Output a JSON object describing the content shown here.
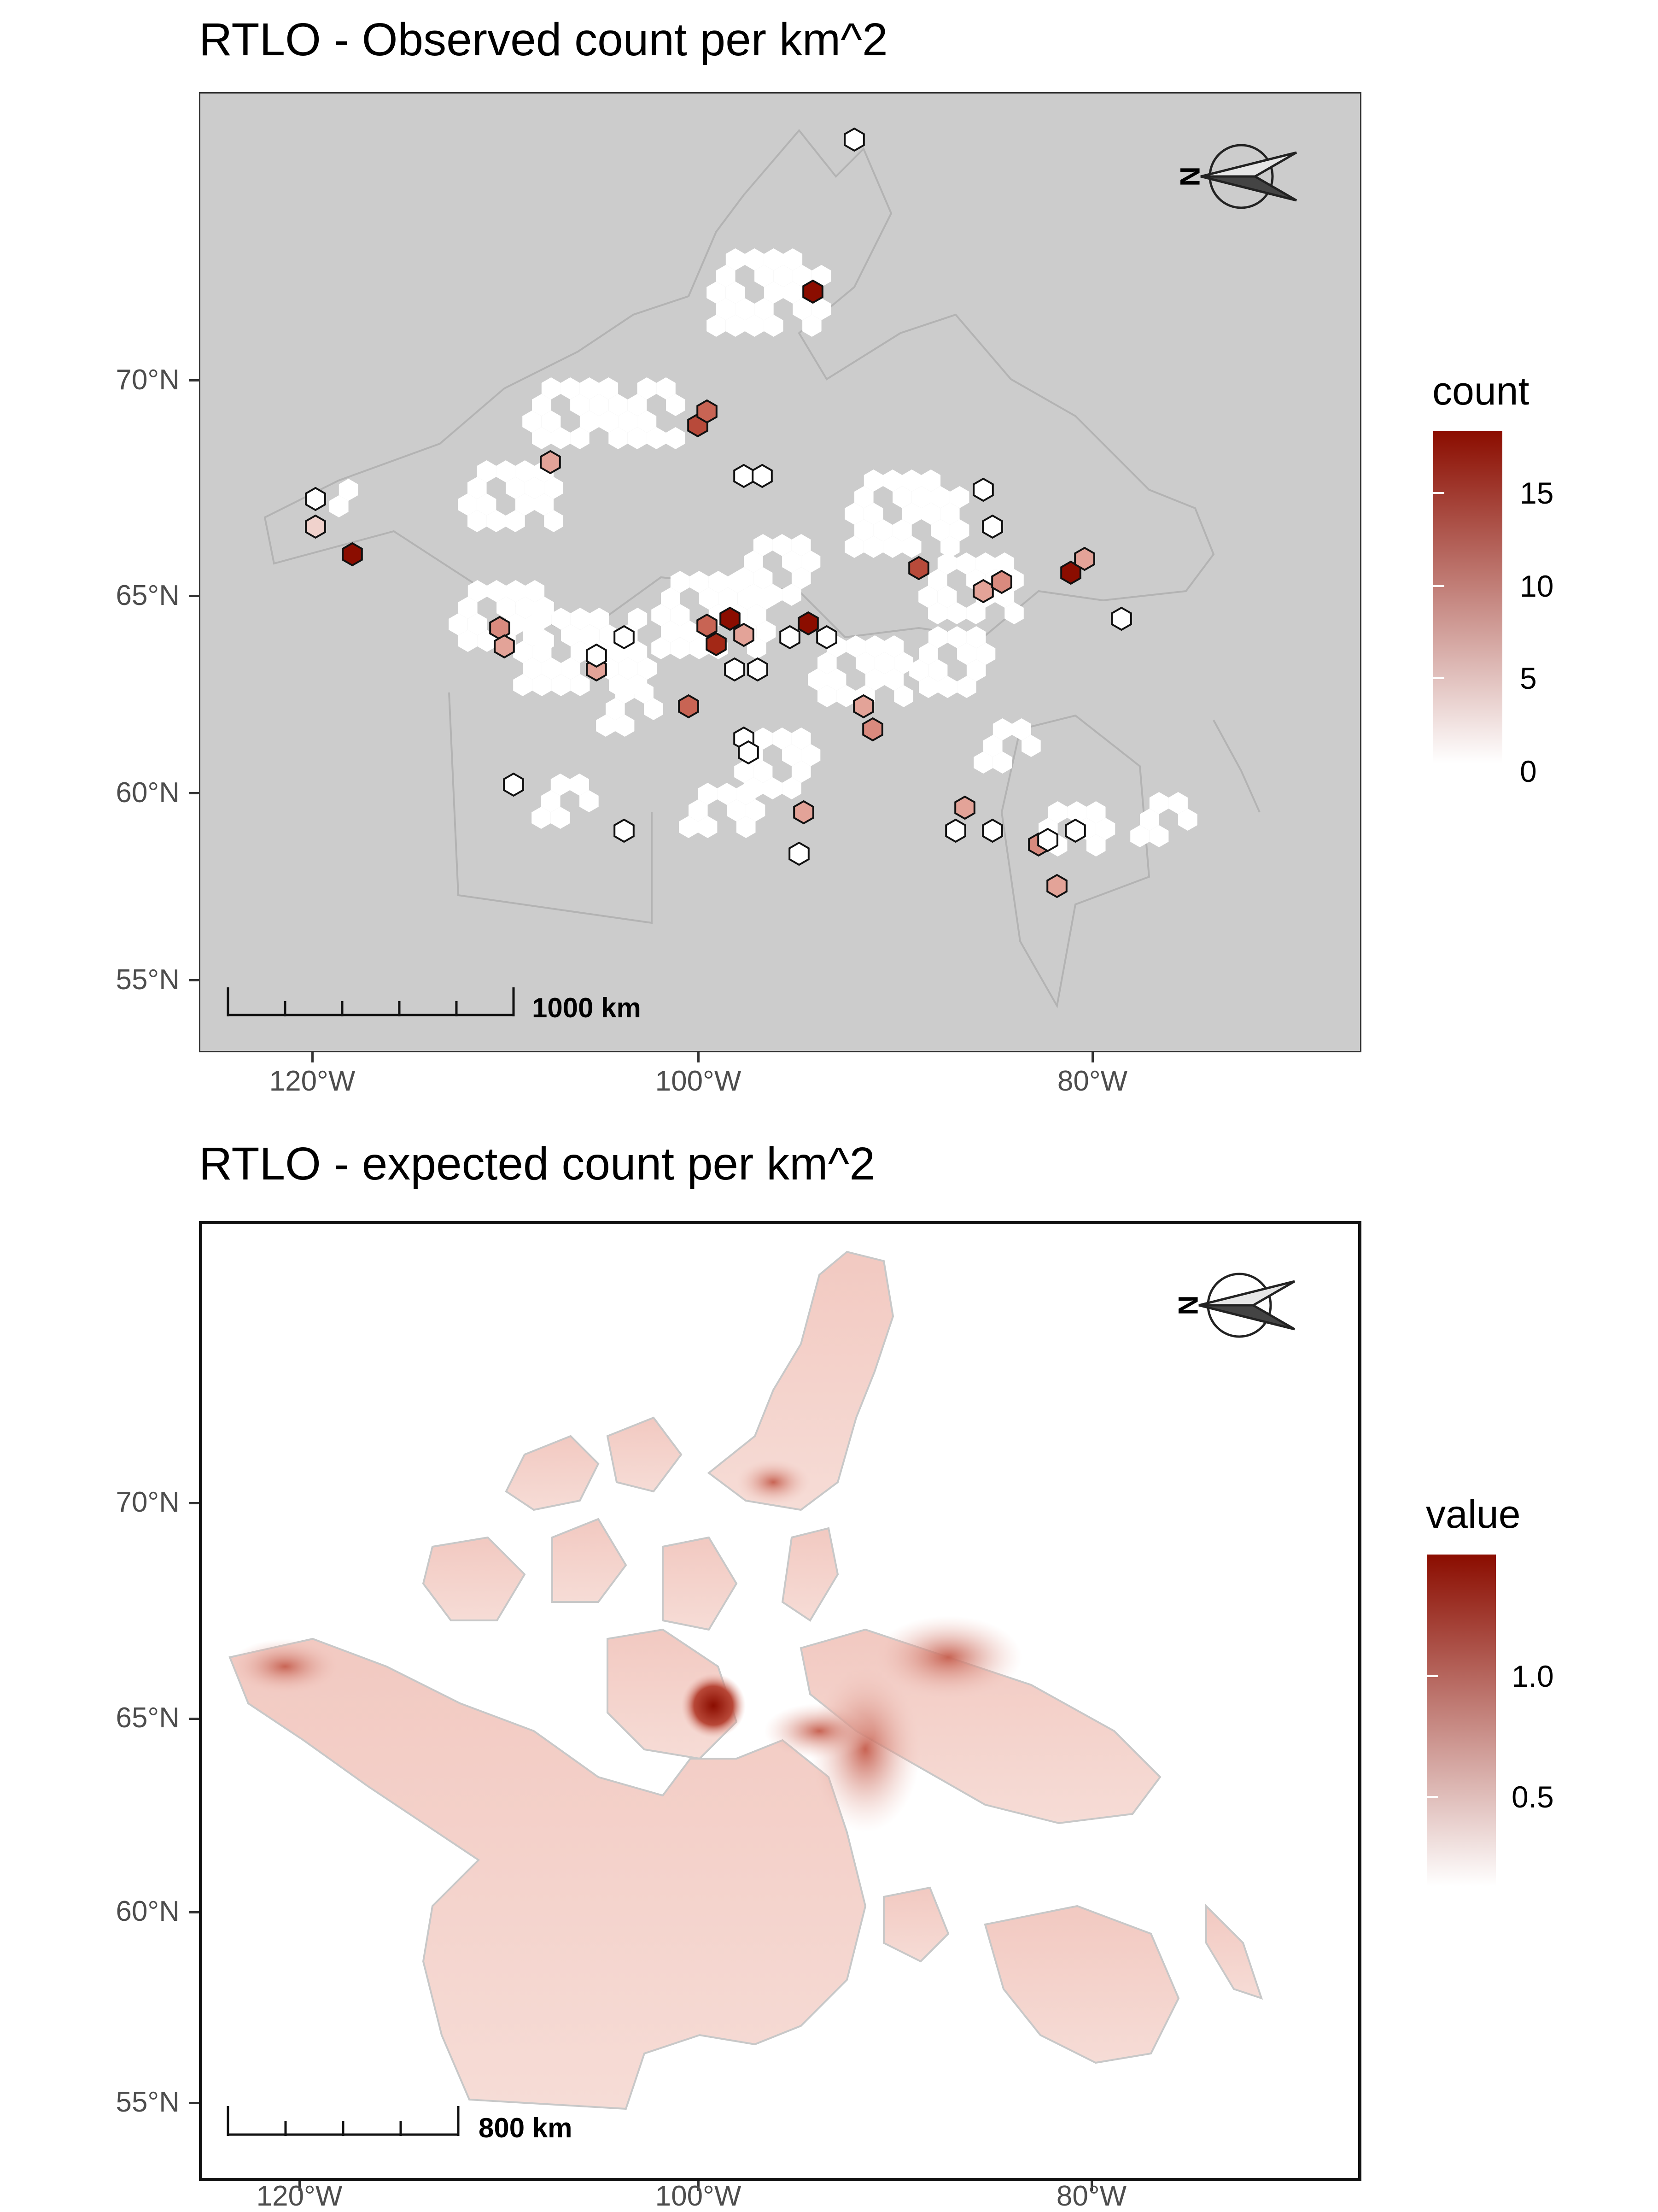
{
  "maps": [
    {
      "title": "RTLO - Observed count per km^2",
      "y_axis_labels": [
        "70°N",
        "65°N",
        "60°N",
        "55°N"
      ],
      "x_axis_labels": [
        "120°W",
        "100°W",
        "80°W"
      ],
      "legend": {
        "title": "count",
        "labels": [
          "15",
          "10",
          "5",
          "0"
        ],
        "range": [
          0,
          18
        ],
        "color_low": "#ffffff",
        "color_high": "#8b0d00"
      },
      "scale_bar": {
        "label": "1000 km"
      },
      "north_arrow": {
        "label": "N"
      }
    },
    {
      "title": "RTLO - expected count per km^2",
      "y_axis_labels": [
        "70°N",
        "65°N",
        "60°N",
        "55°N"
      ],
      "x_axis_labels": [
        "120°W",
        "100°W",
        "80°W"
      ],
      "legend": {
        "title": "value",
        "labels": [
          "1.0",
          "0.5"
        ],
        "range": [
          0.1,
          1.45
        ],
        "color_low": "#ffffff",
        "color_high": "#8b0d00"
      },
      "scale_bar": {
        "label": "800 km"
      },
      "north_arrow": {
        "label": "N"
      }
    }
  ],
  "colors": {
    "panel_background": "#cccccc",
    "land_outline": "#b3b3b3",
    "hex_fill_min": "#ffffff",
    "hex_fill_max": "#8b0d00"
  }
}
